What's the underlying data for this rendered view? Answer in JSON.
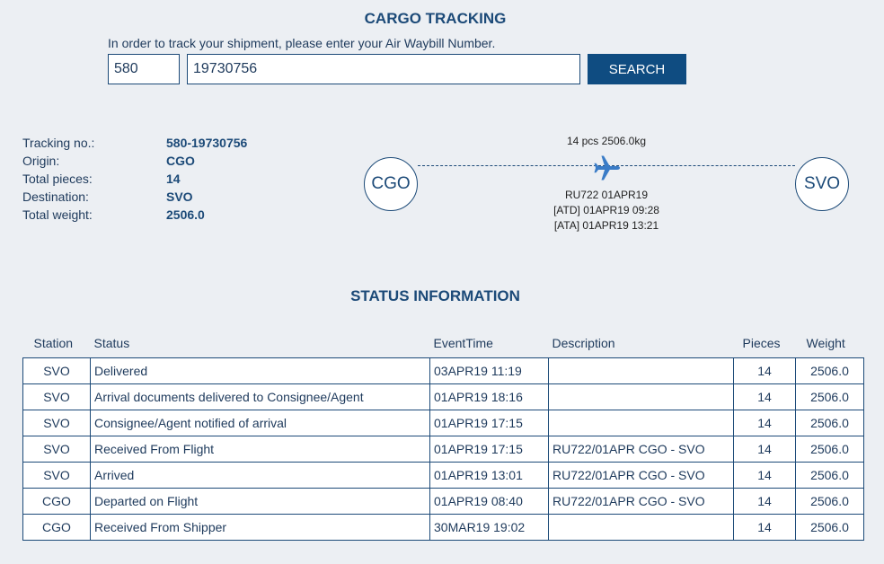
{
  "header": {
    "title": "CARGO TRACKING",
    "intro": "In order to track your shipment, please enter your Air Waybill Number.",
    "prefix": "580",
    "awb": "19730756",
    "search_label": "SEARCH"
  },
  "summary": [
    {
      "label": "Tracking no.:",
      "value": "580-19730756"
    },
    {
      "label": "Origin:",
      "value": "CGO"
    },
    {
      "label": "Total pieces:",
      "value": "14"
    },
    {
      "label": "Destination:",
      "value": "SVO"
    },
    {
      "label": "Total weight:",
      "value": "2506.0"
    }
  ],
  "route": {
    "origin": "CGO",
    "destination": "SVO",
    "cargo": "14 pcs 2506.0kg",
    "flight": "RU722 01APR19",
    "atd": "[ATD] 01APR19 09:28",
    "ata": "[ATA] 01APR19 13:21",
    "plane_icon": "airplane-icon",
    "plane_color": "#3a7cc7"
  },
  "status": {
    "title": "STATUS INFORMATION",
    "columns": [
      "Station",
      "Status",
      "EventTime",
      "Description",
      "Pieces",
      "Weight"
    ],
    "rows": [
      [
        "SVO",
        "Delivered",
        "03APR19 11:19",
        "",
        "14",
        "2506.0"
      ],
      [
        "SVO",
        "Arrival documents delivered to Consignee/Agent",
        "01APR19 18:16",
        "",
        "14",
        "2506.0"
      ],
      [
        "SVO",
        "Consignee/Agent notified of arrival",
        "01APR19 17:15",
        "",
        "14",
        "2506.0"
      ],
      [
        "SVO",
        "Received From Flight",
        "01APR19 17:15",
        "RU722/01APR CGO - SVO",
        "14",
        "2506.0"
      ],
      [
        "SVO",
        "Arrived",
        "01APR19 13:01",
        "RU722/01APR CGO - SVO",
        "14",
        "2506.0"
      ],
      [
        "CGO",
        "Departed on Flight",
        "01APR19 08:40",
        "RU722/01APR CGO - SVO",
        "14",
        "2506.0"
      ],
      [
        "CGO",
        "Received From Shipper",
        "30MAR19 19:02",
        "",
        "14",
        "2506.0"
      ]
    ]
  }
}
